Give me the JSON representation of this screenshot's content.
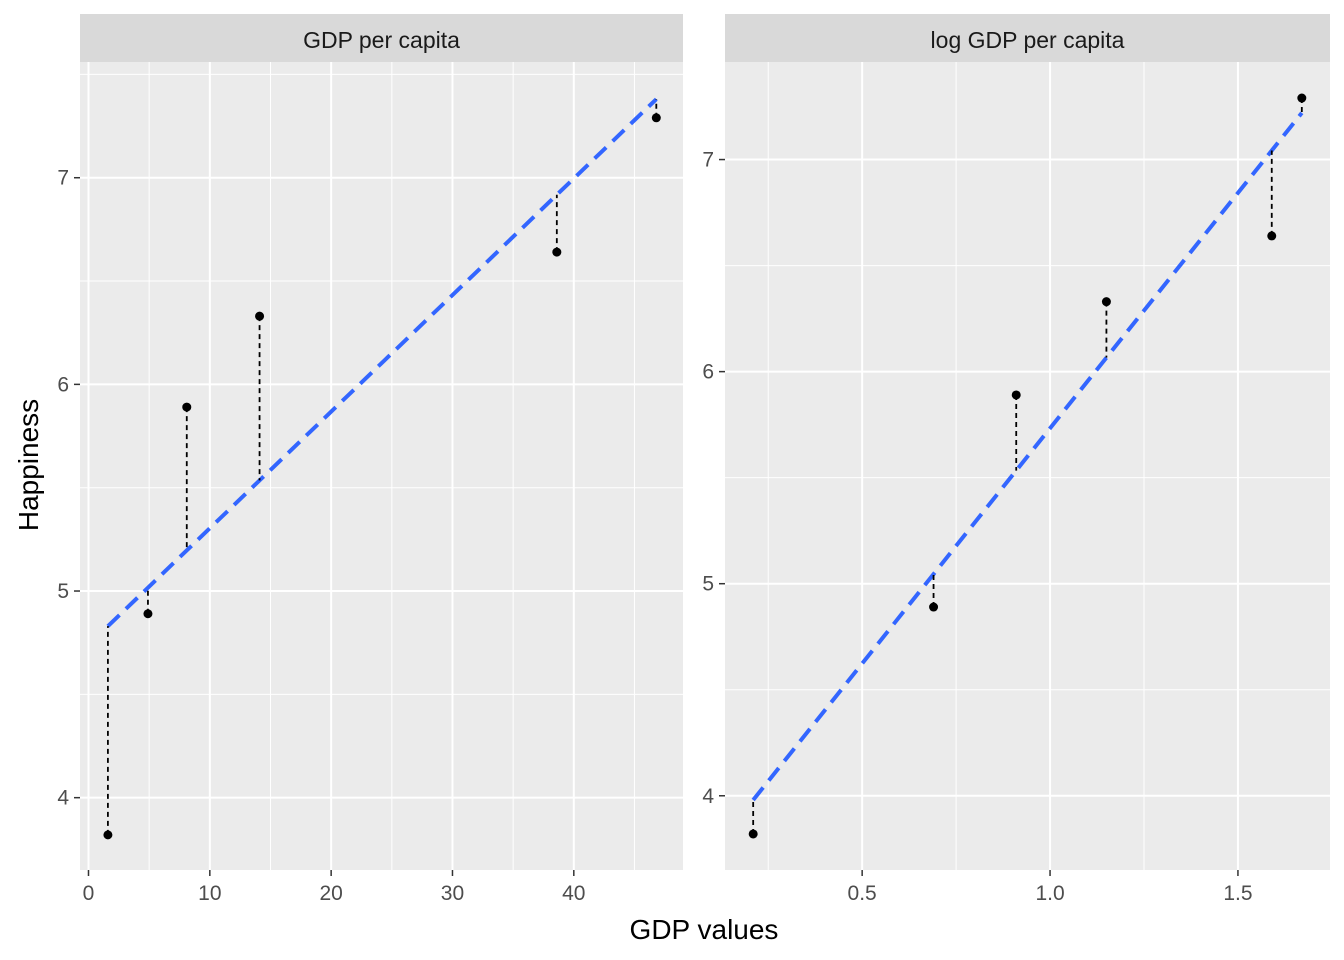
{
  "figure": {
    "xlabel": "GDP values",
    "ylabel": "Happiness",
    "colors": {
      "panel_bg": "#ebebeb",
      "strip_bg": "#d9d9d9",
      "grid": "#ffffff",
      "fit_line": "#3366ff",
      "points": "#000000",
      "residuals": "#000000"
    }
  },
  "chart_data": [
    {
      "type": "scatter",
      "title": "GDP per capita",
      "x": [
        1.6,
        4.9,
        8.1,
        14.1,
        38.6,
        46.8
      ],
      "y": [
        3.82,
        4.89,
        5.89,
        6.33,
        6.64,
        7.29
      ],
      "fit": {
        "x": [
          1.6,
          46.8
        ],
        "y": [
          4.83,
          7.38
        ]
      },
      "xlim": [
        -0.7,
        49.0
      ],
      "ylim": [
        3.65,
        7.56
      ],
      "xticks": [
        0,
        10,
        20,
        30,
        40
      ],
      "xtick_labels": [
        "0",
        "10",
        "20",
        "30",
        "40"
      ],
      "yticks": [
        4,
        5,
        6,
        7
      ],
      "ytick_labels": [
        "4",
        "5",
        "6",
        "7"
      ],
      "grid": true
    },
    {
      "type": "scatter",
      "title": "log GDP per capita",
      "x": [
        0.21,
        0.69,
        0.91,
        1.15,
        1.59,
        1.67
      ],
      "y": [
        3.82,
        4.89,
        5.89,
        6.33,
        6.64,
        7.29
      ],
      "fit": {
        "x": [
          0.21,
          1.67
        ],
        "y": [
          3.98,
          7.22
        ]
      },
      "xlim": [
        0.135,
        1.745
      ],
      "ylim": [
        3.65,
        7.46
      ],
      "xticks": [
        0.5,
        1.0,
        1.5
      ],
      "xtick_labels": [
        "0.5",
        "1.0",
        "1.5"
      ],
      "yticks": [
        4,
        5,
        6,
        7
      ],
      "ytick_labels": [
        "4",
        "5",
        "6",
        "7"
      ],
      "grid": true
    }
  ]
}
